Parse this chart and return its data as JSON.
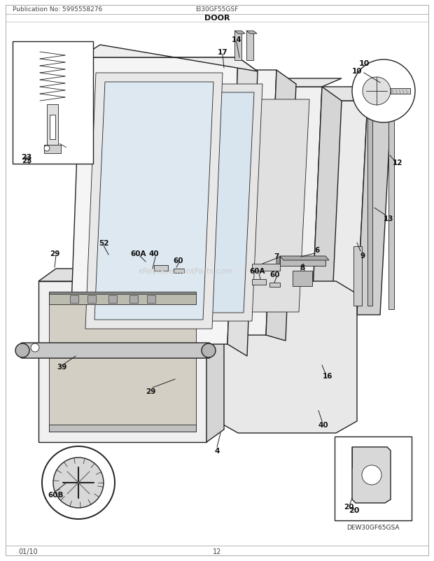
{
  "title": "DOOR",
  "pub_no": "Publication No: 5995558276",
  "model": "EI30GF55GSF",
  "footer_left": "01/10",
  "footer_center": "12",
  "sub_model": "DEW30GF65GSA",
  "watermark": "eReplacementParts.com",
  "bg_color": "#ffffff",
  "lc": "#222222",
  "lc_light": "#888888",
  "fig_w": 6.2,
  "fig_h": 8.03,
  "dpi": 100
}
